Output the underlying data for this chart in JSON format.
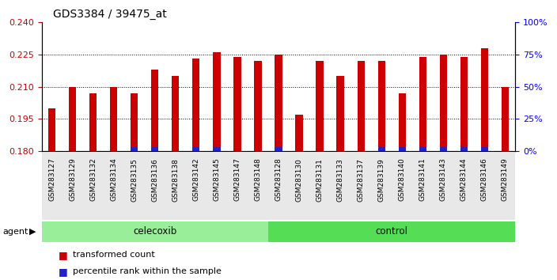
{
  "title": "GDS3384 / 39475_at",
  "samples": [
    "GSM283127",
    "GSM283129",
    "GSM283132",
    "GSM283134",
    "GSM283135",
    "GSM283136",
    "GSM283138",
    "GSM283142",
    "GSM283145",
    "GSM283147",
    "GSM283148",
    "GSM283128",
    "GSM283130",
    "GSM283131",
    "GSM283133",
    "GSM283137",
    "GSM283139",
    "GSM283140",
    "GSM283141",
    "GSM283143",
    "GSM283144",
    "GSM283146",
    "GSM283149"
  ],
  "red_values": [
    0.2,
    0.21,
    0.207,
    0.21,
    0.207,
    0.218,
    0.215,
    0.223,
    0.226,
    0.224,
    0.222,
    0.225,
    0.197,
    0.222,
    0.215,
    0.222,
    0.222,
    0.207,
    0.224,
    0.225,
    0.224,
    0.228,
    0.21
  ],
  "blue_flags": [
    0,
    0,
    0,
    0,
    1,
    1,
    0,
    1,
    1,
    0,
    0,
    1,
    0,
    0,
    0,
    0,
    1,
    1,
    1,
    1,
    1,
    1,
    0
  ],
  "celecoxib_count": 11,
  "control_count": 12,
  "ylim_left": [
    0.18,
    0.24
  ],
  "ylim_right": [
    0,
    100
  ],
  "yticks_left": [
    0.18,
    0.195,
    0.21,
    0.225,
    0.24
  ],
  "yticks_right": [
    0,
    25,
    50,
    75,
    100
  ],
  "bar_color_red": "#cc0000",
  "bar_color_blue": "#2222cc",
  "celecoxib_color": "#99ee99",
  "control_color": "#55dd55",
  "agent_label": "agent",
  "celecoxib_label": "celecoxib",
  "control_label": "control",
  "legend_red": "transformed count",
  "legend_blue": "percentile rank within the sample",
  "bar_width": 0.35,
  "base": 0.18,
  "bg_color": "#e8e8e8"
}
